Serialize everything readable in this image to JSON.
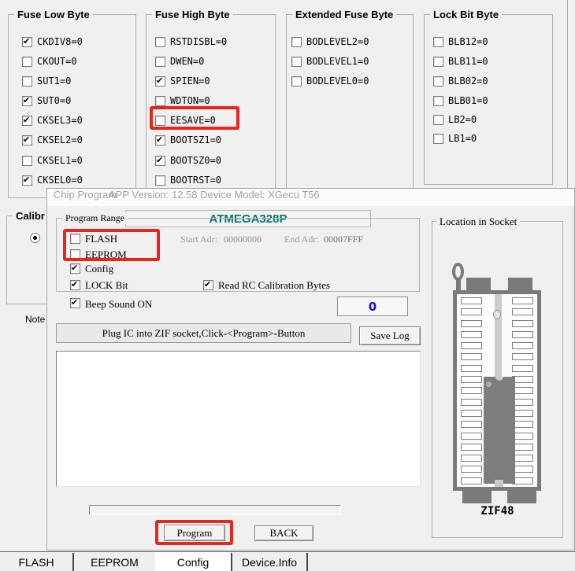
{
  "colors": {
    "accent_teal": "#00796b",
    "highlight_red": "#e8261d",
    "counter_blue": "#1313cf",
    "window_bg": "#f0f0f0"
  },
  "fuse_low": {
    "title": "Fuse Low Byte",
    "items": [
      {
        "label": "CKDIV8=0",
        "checked": true
      },
      {
        "label": "CKOUT=0",
        "checked": false
      },
      {
        "label": "SUT1=0",
        "checked": false
      },
      {
        "label": "SUT0=0",
        "checked": true
      },
      {
        "label": "CKSEL3=0",
        "checked": true
      },
      {
        "label": "CKSEL2=0",
        "checked": true
      },
      {
        "label": "CKSEL1=0",
        "checked": false
      },
      {
        "label": "CKSEL0=0",
        "checked": true
      }
    ]
  },
  "fuse_high": {
    "title": "Fuse High Byte",
    "items": [
      {
        "label": "RSTDISBL=0",
        "checked": false
      },
      {
        "label": "DWEN=0",
        "checked": false
      },
      {
        "label": "SPIEN=0",
        "checked": true
      },
      {
        "label": "WDTON=0",
        "checked": false
      },
      {
        "label": "EESAVE=0",
        "checked": false,
        "highlighted": true
      },
      {
        "label": "BOOTSZ1=0",
        "checked": true
      },
      {
        "label": "BOOTSZ0=0",
        "checked": true
      },
      {
        "label": "BOOTRST=0",
        "checked": false
      }
    ]
  },
  "fuse_ext": {
    "title": "Extended Fuse Byte",
    "items": [
      {
        "label": "BODLEVEL2=0",
        "checked": false
      },
      {
        "label": "BODLEVEL1=0",
        "checked": false
      },
      {
        "label": "BODLEVEL0=0",
        "checked": false
      }
    ]
  },
  "lock_bits": {
    "title": "Lock Bit Byte",
    "items": [
      {
        "label": "BLB12=0",
        "checked": false
      },
      {
        "label": "BLB11=0",
        "checked": false
      },
      {
        "label": "BLB02=0",
        "checked": false
      },
      {
        "label": "BLB01=0",
        "checked": false
      },
      {
        "label": "LB2=0",
        "checked": false
      },
      {
        "label": "LB1=0",
        "checked": false
      }
    ]
  },
  "left_panel": {
    "calibration_title": "Calibr",
    "note_label": "Note",
    "radio_selected": true
  },
  "dialog": {
    "title": "Chip Program",
    "subtitle": "APP Version: 12.58 Device Model: XGecu T56",
    "device_name": "ATMEGA328P",
    "program_range": {
      "title": "Program Range",
      "flash": {
        "label": "FLASH",
        "checked": false,
        "highlighted": true
      },
      "eeprom": {
        "label": "EEPROM",
        "checked": false,
        "highlighted": true
      },
      "config": {
        "label": "Config",
        "checked": true
      },
      "lock_bit": {
        "label": "LOCK Bit",
        "checked": true
      },
      "start_adr_label": "Start Adr:",
      "start_adr_value": "00000000",
      "end_adr_label": "End Adr:",
      "end_adr_value": "00007FFF",
      "read_rc": {
        "label": "Read RC Calibration Bytes",
        "checked": true
      }
    },
    "beep": {
      "label": "Beep Sound ON",
      "checked": true
    },
    "counter_value": "0",
    "status_message": "Plug IC into ZIF socket,Click-<Program>-Button",
    "save_log_label": "Save Log",
    "program_label": "Program",
    "back_label": "BACK",
    "socket": {
      "title": "Location in Socket",
      "label": "ZIF48"
    }
  },
  "tabs": [
    {
      "label": "FLASH",
      "active": false
    },
    {
      "label": "EEPROM",
      "active": false
    },
    {
      "label": "Config",
      "active": true
    },
    {
      "label": "Device.Info",
      "active": false
    }
  ]
}
